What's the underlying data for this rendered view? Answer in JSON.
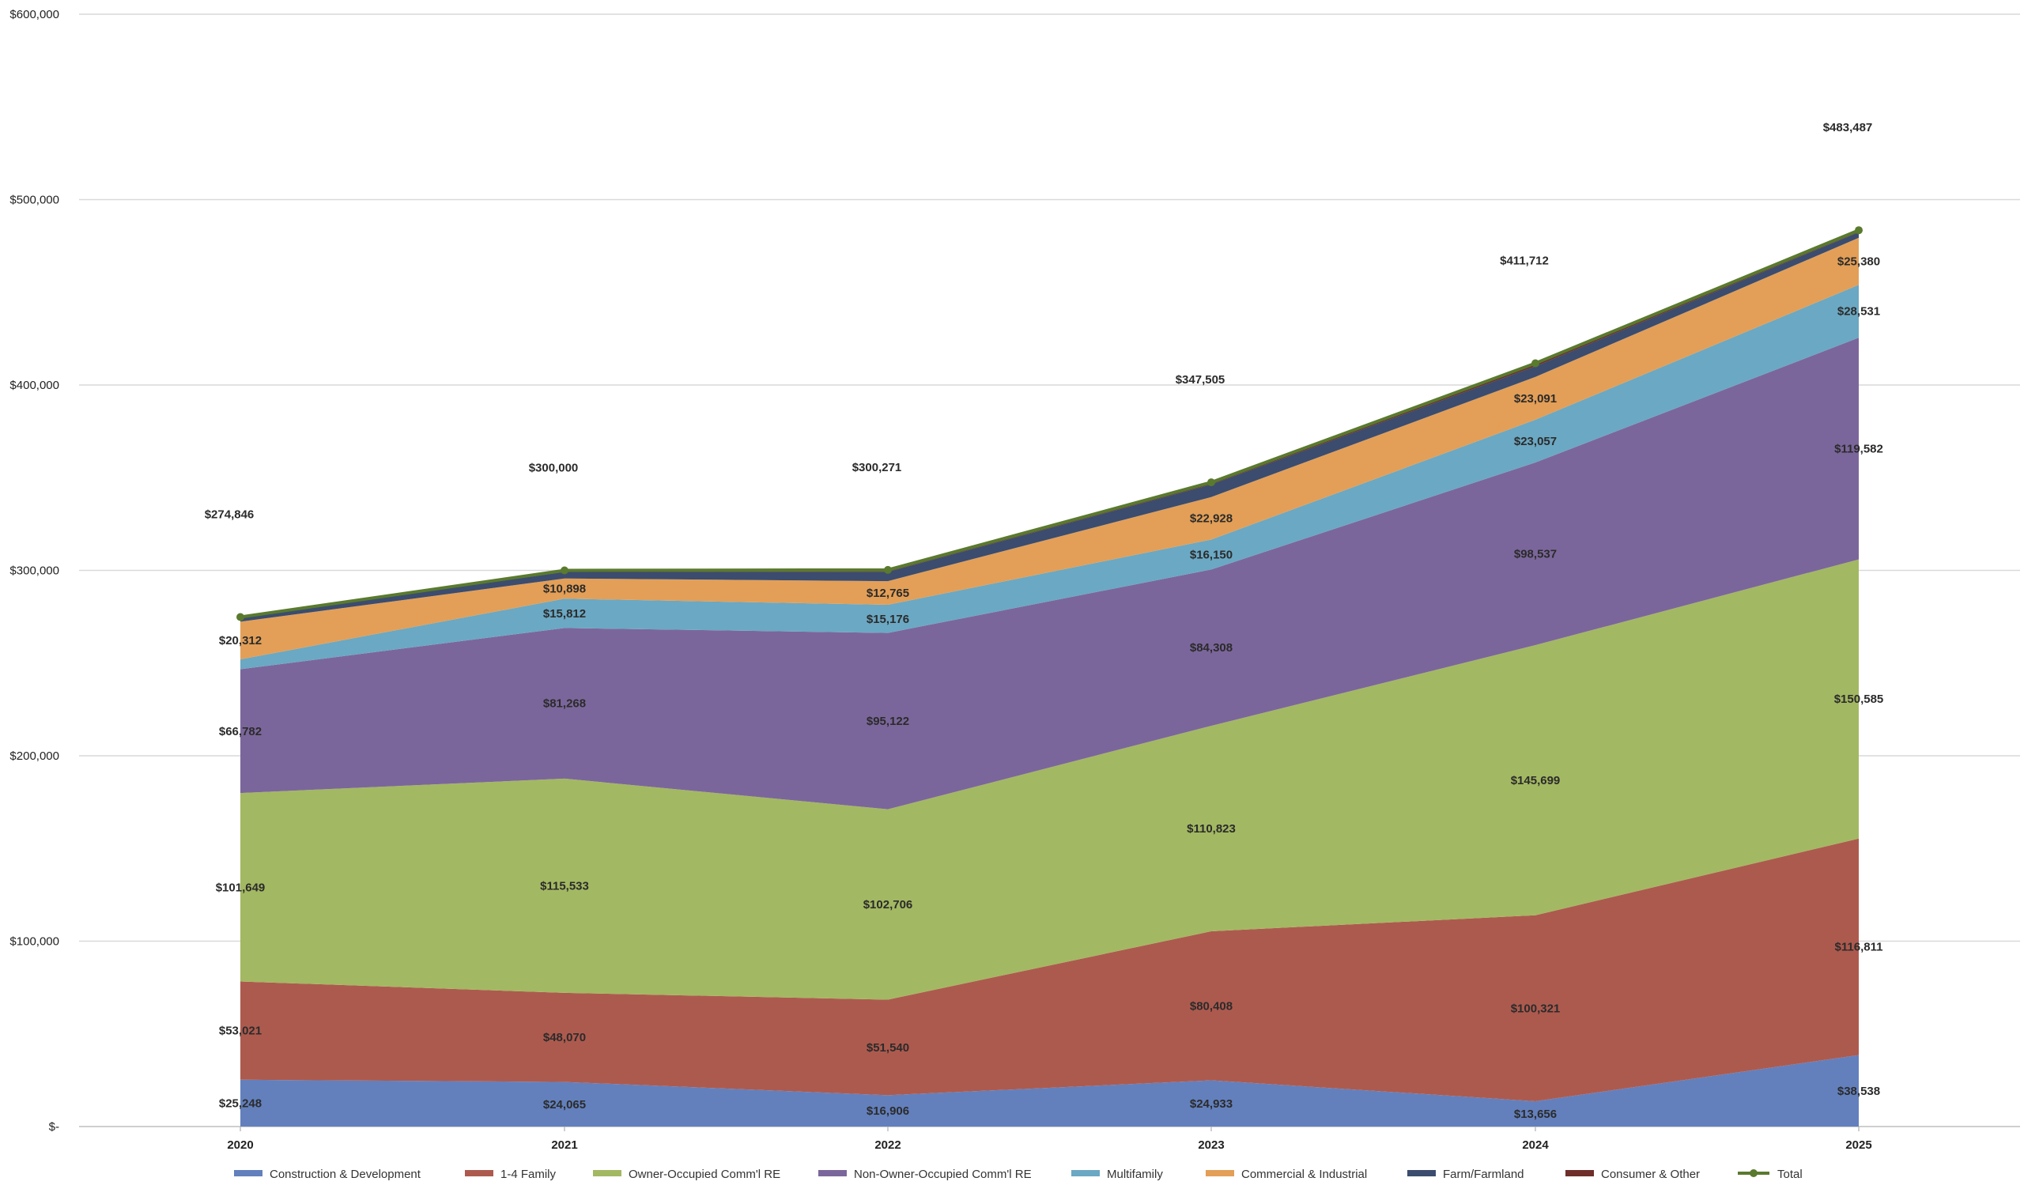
{
  "chart_data": {
    "type": "area",
    "stacked": true,
    "categories": [
      "2020",
      "2021",
      "2022",
      "2023",
      "2024",
      "2025"
    ],
    "ylim": [
      0,
      600000
    ],
    "yticks": [
      0,
      100000,
      200000,
      300000,
      400000,
      500000,
      600000
    ],
    "ytick_labels": [
      "$-",
      "$100,000",
      "$200,000",
      "$300,000",
      "$400,000",
      "$500,000",
      "$600,000"
    ],
    "grid": true,
    "legend_position": "bottom",
    "series": [
      {
        "name": "Construction & Development",
        "color": "#6380bd",
        "values": [
          25248,
          24065,
          16906,
          24933,
          13656,
          38538
        ],
        "labels": [
          "$25,248",
          "$24,065",
          "$16,906",
          "$24,933",
          "$13,656",
          "$38,538"
        ]
      },
      {
        "name": "1-4 Family",
        "color": "#ad5a4e",
        "values": [
          53021,
          48070,
          51540,
          80408,
          100321,
          116811
        ],
        "labels": [
          "$53,021",
          "$48,070",
          "$51,540",
          "$80,408",
          "$100,321",
          "$116,811"
        ]
      },
      {
        "name": "Owner-Occupied Comm'l RE",
        "color": "#a3b862",
        "values": [
          101649,
          115533,
          102706,
          110823,
          145699,
          150585
        ],
        "labels": [
          "$101,649",
          "$115,533",
          "$102,706",
          "$110,823",
          "$145,699",
          "$150,585"
        ]
      },
      {
        "name": "Non-Owner-Occupied Comm'l RE",
        "color": "#7b669b",
        "values": [
          66782,
          81268,
          95122,
          84308,
          98537,
          119582
        ],
        "labels": [
          "$66,782",
          "$81,268",
          "$95,122",
          "$84,308",
          "$98,537",
          "$119,582"
        ]
      },
      {
        "name": "Multifamily",
        "color": "#6ba8c3",
        "values": [
          5300,
          15812,
          15176,
          16150,
          23057,
          28531
        ],
        "labels": [
          null,
          "$15,812",
          "$15,176",
          "$16,150",
          "$23,057",
          "$28,531"
        ]
      },
      {
        "name": "Commercial & Industrial",
        "color": "#e39f57",
        "values": [
          20312,
          10898,
          12765,
          22928,
          23091,
          25380
        ],
        "labels": [
          "$20,312",
          "$10,898",
          "$12,765",
          "$22,928",
          "$23,091",
          "$25,380"
        ]
      },
      {
        "name": "Farm/Farmland",
        "color": "#3b4c6e",
        "values": [
          2300,
          3500,
          5000,
          6800,
          5700,
          3000
        ],
        "labels": [
          null,
          null,
          null,
          null,
          null,
          null
        ]
      },
      {
        "name": "Consumer & Other",
        "color": "#6e2e2a",
        "values": [
          234,
          854,
          1056,
          1155,
          1651,
          1060
        ],
        "labels": [
          null,
          null,
          null,
          null,
          null,
          null
        ]
      }
    ],
    "total": {
      "name": "Total",
      "color": "#5a7a2e",
      "values": [
        274846,
        300000,
        300271,
        347505,
        411712,
        483487
      ],
      "labels": [
        "$274,846",
        "$300,000",
        "$300,271",
        "$347,505",
        "$411,712",
        "$483,487"
      ]
    }
  }
}
